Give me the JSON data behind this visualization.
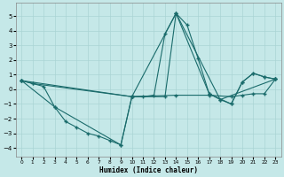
{
  "xlabel": "Humidex (Indice chaleur)",
  "bg_color": "#c5e8e8",
  "line_color": "#1a6b6b",
  "grid_color": "#aad4d4",
  "xlim": [
    -0.5,
    23.5
  ],
  "ylim": [
    -4.6,
    5.9
  ],
  "yticks": [
    -4,
    -3,
    -2,
    -1,
    0,
    1,
    2,
    3,
    4,
    5
  ],
  "xticks": [
    0,
    1,
    2,
    3,
    4,
    5,
    6,
    7,
    8,
    9,
    10,
    11,
    12,
    13,
    14,
    15,
    16,
    17,
    18,
    19,
    20,
    21,
    22,
    23
  ],
  "lines": [
    {
      "x": [
        0,
        1,
        2,
        3,
        4,
        5,
        6,
        7,
        8,
        9,
        10,
        11,
        12,
        13,
        14,
        15,
        16,
        17,
        18,
        19,
        20,
        21,
        22,
        23
      ],
      "y": [
        0.6,
        0.4,
        0.2,
        -1.2,
        -2.2,
        -2.6,
        -3.0,
        -3.2,
        -3.5,
        -3.8,
        -0.5,
        -0.5,
        -0.4,
        3.8,
        5.2,
        4.4,
        2.1,
        -0.3,
        -0.7,
        -1.0,
        0.5,
        1.1,
        0.85,
        0.7
      ]
    },
    {
      "x": [
        0,
        10,
        13,
        14,
        17,
        19,
        20,
        21,
        22,
        23
      ],
      "y": [
        0.6,
        -0.5,
        -0.5,
        5.2,
        -0.3,
        -1.0,
        0.5,
        1.1,
        0.85,
        0.7
      ]
    },
    {
      "x": [
        0,
        3,
        9,
        10,
        14,
        18,
        23
      ],
      "y": [
        0.6,
        -1.2,
        -3.8,
        -0.5,
        5.2,
        -0.7,
        0.7
      ]
    },
    {
      "x": [
        0,
        1,
        10,
        14,
        17,
        19,
        20,
        21,
        22,
        23
      ],
      "y": [
        0.6,
        0.4,
        -0.5,
        -0.4,
        -0.4,
        -0.5,
        -0.4,
        -0.3,
        -0.3,
        0.7
      ]
    }
  ]
}
